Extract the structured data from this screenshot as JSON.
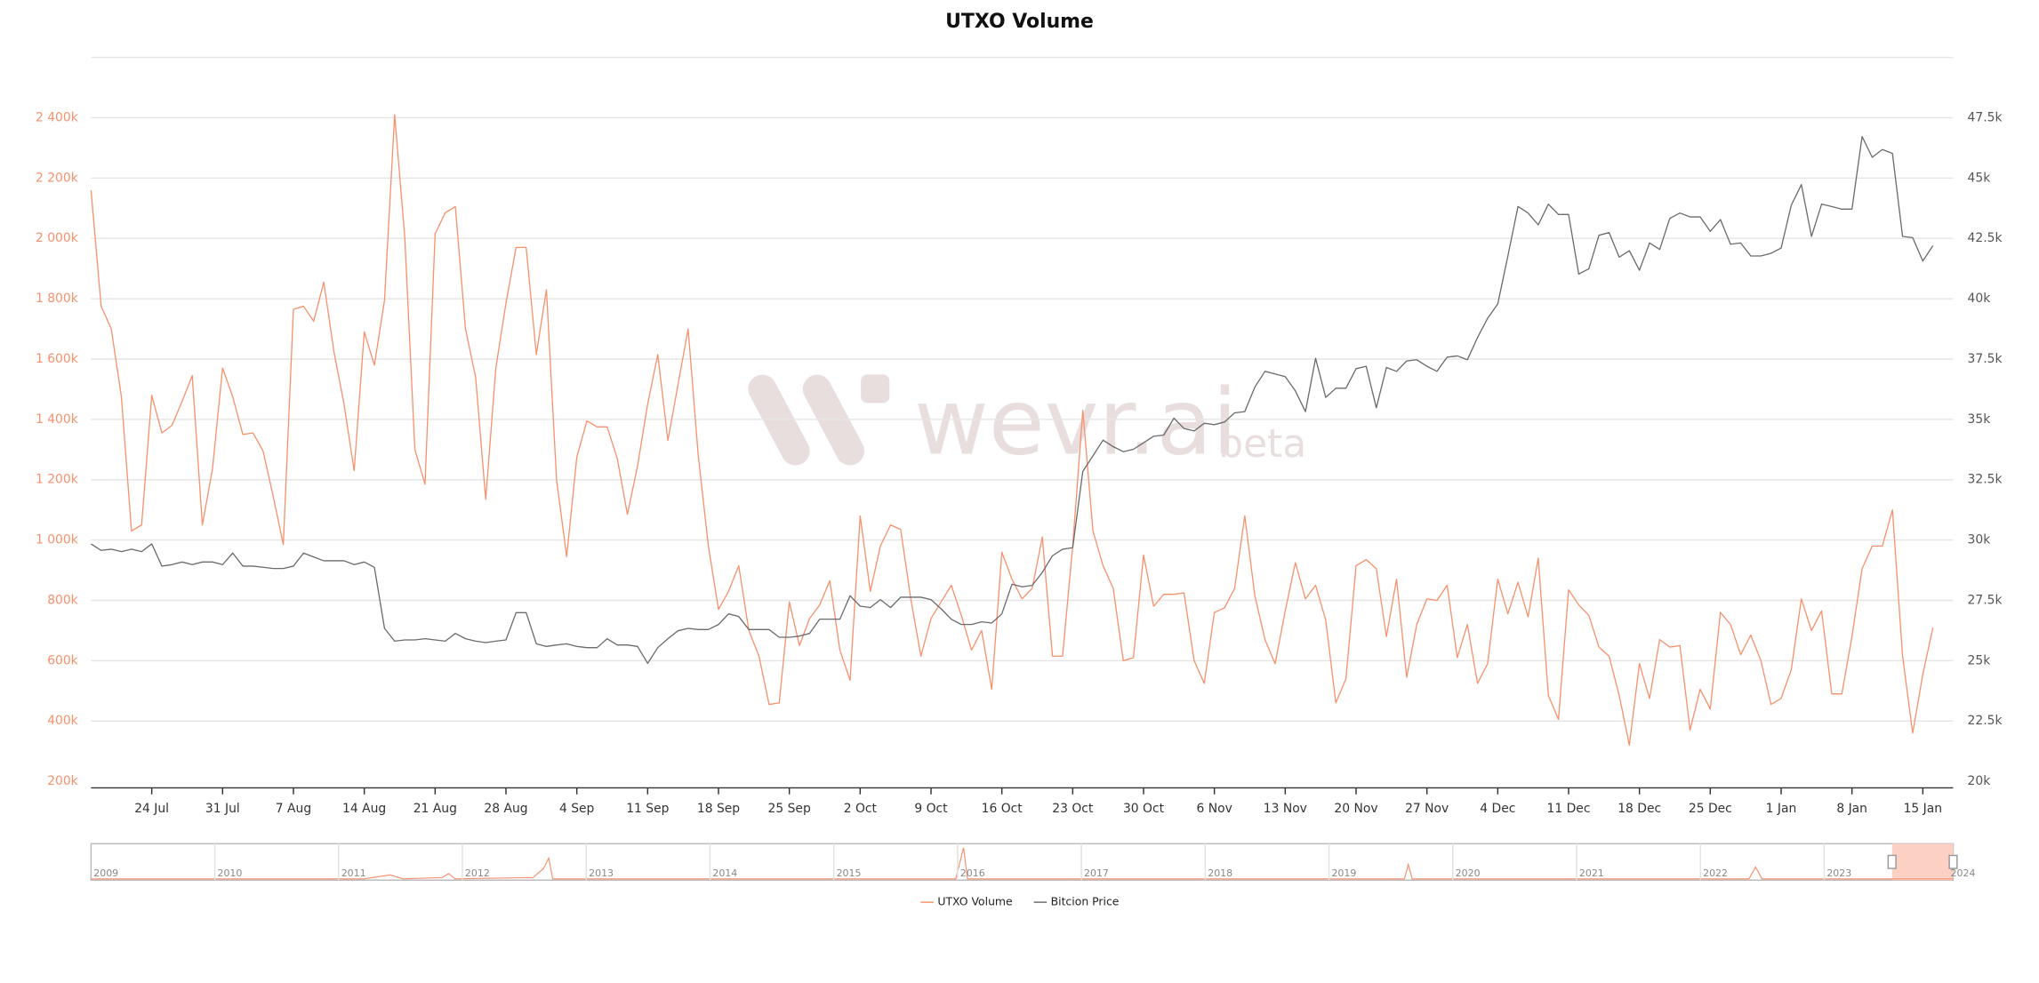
{
  "chart_data": {
    "type": "line",
    "title": "UTXO Volume",
    "categories": [
      null,
      null,
      null,
      null,
      null,
      null,
      "24 Jul",
      null,
      null,
      null,
      null,
      null,
      null,
      "31 Jul",
      null,
      null,
      null,
      null,
      null,
      null,
      "7 Aug",
      null,
      null,
      null,
      null,
      null,
      null,
      "14 Aug",
      null,
      null,
      null,
      null,
      null,
      null,
      "21 Aug",
      null,
      null,
      null,
      null,
      null,
      null,
      "28 Aug",
      null,
      null,
      null,
      null,
      null,
      null,
      "4 Sep",
      null,
      null,
      null,
      null,
      null,
      null,
      "11 Sep",
      null,
      null,
      null,
      null,
      null,
      null,
      "18 Sep",
      null,
      null,
      null,
      null,
      null,
      null,
      "25 Sep",
      null,
      null,
      null,
      null,
      null,
      null,
      "2 Oct",
      null,
      null,
      null,
      null,
      null,
      null,
      "9 Oct",
      null,
      null,
      null,
      null,
      null,
      null,
      "16 Oct",
      null,
      null,
      null,
      null,
      null,
      null,
      "23 Oct",
      null,
      null,
      null,
      null,
      null,
      null,
      "30 Oct",
      null,
      null,
      null,
      null,
      null,
      null,
      "6 Nov",
      null,
      null,
      null,
      null,
      null,
      null,
      "13 Nov",
      null,
      null,
      null,
      null,
      null,
      null,
      "20 Nov",
      null,
      null,
      null,
      null,
      null,
      null,
      "27 Nov",
      null,
      null,
      null,
      null,
      null,
      null,
      "4 Dec",
      null,
      null,
      null,
      null,
      null,
      null,
      "11 Dec",
      null,
      null,
      null,
      null,
      null,
      null,
      "18 Dec",
      null,
      null,
      null,
      null,
      null,
      null,
      "25 Dec",
      null,
      null,
      null,
      null,
      null,
      null,
      "1 Jan",
      null,
      null,
      null,
      null,
      null,
      null,
      "8 Jan",
      null,
      null,
      null,
      null,
      null,
      null,
      "15 Jan",
      null
    ],
    "series": [
      {
        "name": "UTXO Volume",
        "color": "#f7916e",
        "values": [
          2160000,
          1775000,
          1700000,
          1475000,
          1030000,
          1050000,
          1480000,
          1355000,
          1380000,
          1460000,
          1545000,
          1050000,
          1235000,
          1570000,
          1475000,
          1350000,
          1355000,
          1295000,
          1145000,
          985000,
          1765000,
          1775000,
          1725000,
          1855000,
          1625000,
          1450000,
          1230000,
          1690000,
          1580000,
          1795000,
          2410000,
          2005000,
          1300000,
          1185000,
          2015000,
          2085000,
          2105000,
          1700000,
          1540000,
          1135000,
          1570000,
          1785000,
          1970000,
          1970000,
          1615000,
          1830000,
          1200000,
          945000,
          1275000,
          1395000,
          1375000,
          1375000,
          1270000,
          1085000,
          1245000,
          1450000,
          1615000,
          1330000,
          1515000,
          1700000,
          1280000,
          980000,
          770000,
          830000,
          915000,
          700000,
          615000,
          455000,
          460000,
          795000,
          650000,
          740000,
          785000,
          865000,
          635000,
          535000,
          1080000,
          830000,
          980000,
          1050000,
          1035000,
          805000,
          615000,
          740000,
          795000,
          850000,
          750000,
          635000,
          700000,
          505000,
          960000,
          870000,
          805000,
          840000,
          1010000,
          615000,
          615000,
          980000,
          1430000,
          1030000,
          915000,
          840000,
          600000,
          610000,
          950000,
          780000,
          820000,
          820000,
          825000,
          600000,
          525000,
          760000,
          775000,
          840000,
          1080000,
          815000,
          670000,
          590000,
          765000,
          925000,
          805000,
          850000,
          735000,
          460000,
          540000,
          915000,
          935000,
          905000,
          680000,
          870000,
          545000,
          720000,
          805000,
          800000,
          850000,
          610000,
          720000,
          525000,
          590000,
          870000,
          755000,
          860000,
          745000,
          940000,
          485000,
          405000,
          835000,
          785000,
          750000,
          645000,
          615000,
          485000,
          320000,
          590000,
          475000,
          670000,
          645000,
          650000,
          370000,
          505000,
          440000,
          760000,
          720000,
          620000,
          685000,
          600000,
          455000,
          475000,
          570000,
          805000,
          700000,
          765000,
          490000,
          490000,
          680000,
          905000,
          980000,
          980000,
          1100000,
          615000,
          360000,
          555000,
          710000
        ]
      },
      {
        "name": "Bitcion Price",
        "color": "#6b6b6b",
        "axis": "y2",
        "values": [
          29840,
          29570,
          29620,
          29520,
          29620,
          29520,
          29840,
          28920,
          28980,
          29090,
          28980,
          29090,
          29090,
          28980,
          29460,
          28920,
          28920,
          28870,
          28820,
          28820,
          28920,
          29460,
          29300,
          29140,
          29140,
          29140,
          28980,
          29090,
          28870,
          26340,
          25810,
          25860,
          25860,
          25910,
          25860,
          25810,
          26130,
          25910,
          25810,
          25750,
          25810,
          25860,
          26990,
          26990,
          25700,
          25590,
          25650,
          25700,
          25590,
          25540,
          25540,
          25910,
          25650,
          25650,
          25590,
          24890,
          25540,
          25910,
          26240,
          26340,
          26290,
          26290,
          26500,
          26940,
          26830,
          26290,
          26290,
          26290,
          25970,
          25970,
          26020,
          26130,
          26720,
          26720,
          26720,
          27690,
          27260,
          27200,
          27530,
          27200,
          27630,
          27630,
          27630,
          27530,
          27150,
          26720,
          26500,
          26500,
          26610,
          26560,
          26940,
          28170,
          28060,
          28120,
          28660,
          29350,
          29620,
          29680,
          32850,
          33490,
          34140,
          33870,
          33660,
          33760,
          34030,
          34300,
          34350,
          35050,
          34620,
          34520,
          34840,
          34780,
          34890,
          35270,
          35320,
          36340,
          36990,
          36880,
          36770,
          36180,
          35320,
          37530,
          35910,
          36290,
          36290,
          37100,
          37200,
          35480,
          37150,
          36990,
          37420,
          37470,
          37200,
          36990,
          37580,
          37630,
          37470,
          38390,
          39190,
          39780,
          41770,
          43820,
          43550,
          43060,
          43920,
          43490,
          43490,
          41020,
          41240,
          42630,
          42740,
          41720,
          41990,
          41180,
          42310,
          42040,
          43330,
          43550,
          43390,
          43390,
          42790,
          43280,
          42260,
          42310,
          41770,
          41770,
          41880,
          42100,
          43870,
          44730,
          42580,
          43920,
          43820,
          43710,
          43710,
          46720,
          45860,
          46180,
          46020,
          42580,
          42530,
          41560,
          42200
        ]
      }
    ],
    "ylim": [
      200000,
      2600000
    ],
    "yticks": [
      {
        "value": 200000,
        "label": "200k"
      },
      {
        "value": 400000,
        "label": "400k"
      },
      {
        "value": 600000,
        "label": "600k"
      },
      {
        "value": 800000,
        "label": "800k"
      },
      {
        "value": 1000000,
        "label": "1 000k"
      },
      {
        "value": 1200000,
        "label": "1 200k"
      },
      {
        "value": 1400000,
        "label": "1 400k"
      },
      {
        "value": 1600000,
        "label": "1 600k"
      },
      {
        "value": 1800000,
        "label": "1 800k"
      },
      {
        "value": 2000000,
        "label": "2 000k"
      },
      {
        "value": 2200000,
        "label": "2 200k"
      },
      {
        "value": 2400000,
        "label": "2 400k"
      }
    ],
    "y2lim": [
      20000,
      50000
    ],
    "y2ticks": [
      {
        "value": 20000,
        "label": "20k"
      },
      {
        "value": 22500,
        "label": "22.5k"
      },
      {
        "value": 25000,
        "label": "25k"
      },
      {
        "value": 27500,
        "label": "27.5k"
      },
      {
        "value": 30000,
        "label": "30k"
      },
      {
        "value": 32500,
        "label": "32.5k"
      },
      {
        "value": 35000,
        "label": "35k"
      },
      {
        "value": 37500,
        "label": "37.5k"
      },
      {
        "value": 40000,
        "label": "40k"
      },
      {
        "value": 42500,
        "label": "42.5k"
      },
      {
        "value": 45000,
        "label": "45k"
      },
      {
        "value": 47500,
        "label": "47.5k"
      }
    ],
    "grid": true,
    "legend": "bottom"
  },
  "navigator": {
    "years": [
      "2009",
      "2010",
      "2011",
      "2012",
      "2013",
      "2014",
      "2015",
      "2016",
      "2017",
      "2018",
      "2019",
      "2020",
      "2021",
      "2022",
      "2023",
      "2024"
    ]
  },
  "watermark": {
    "brand": "wevr.ai",
    "tag": "beta"
  }
}
